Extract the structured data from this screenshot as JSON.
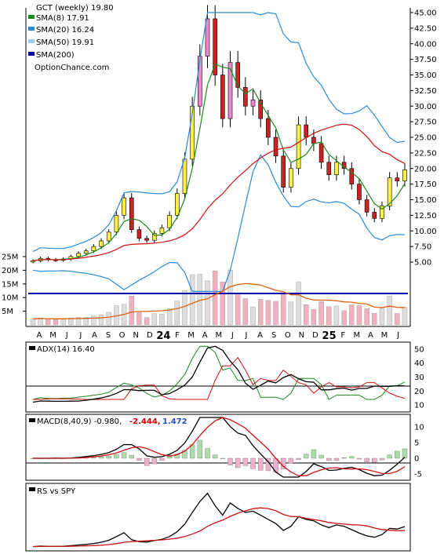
{
  "legend": {
    "title": "GCT (weekly) 19.80",
    "items": [
      {
        "label": "SMA(8) 17.91",
        "color": "#1a8a1a"
      },
      {
        "label": "SMA(20) 16.24",
        "color": "#2a8ad8"
      },
      {
        "label": "SMA(50) 19.91",
        "color": "#99ccee"
      },
      {
        "label": "SMA(200)",
        "color": "#0000aa"
      }
    ],
    "source": "OptionChance.com"
  },
  "chart_data": [
    {
      "type": "candlestick",
      "title": "GCT (weekly) 19.80",
      "ylim": [
        0,
        45
      ],
      "y_ticks": [
        "45.00",
        "42.50",
        "40.00",
        "37.50",
        "35.00",
        "32.50",
        "30.00",
        "27.50",
        "25.00",
        "22.50",
        "20.00",
        "17.50",
        "15.00",
        "12.50",
        "10.00",
        "7.50",
        "5.00"
      ],
      "volume_ticks": [
        "25M",
        "20M",
        "15M",
        "10M",
        "5M"
      ],
      "x_tick_labels": [
        "A",
        "M",
        "J",
        "J",
        "A",
        "S",
        "O",
        "N",
        "D",
        "24",
        "F",
        "M",
        "A",
        "M",
        "J",
        "J",
        "A",
        "S",
        "O",
        "N",
        "D",
        "25",
        "F",
        "M",
        "A",
        "M",
        "J"
      ],
      "close_approx": [
        5.2,
        5.6,
        5.4,
        5.3,
        5.5,
        5.9,
        6.4,
        6.8,
        7.5,
        8.4,
        9.8,
        12.5,
        15.3,
        10.2,
        8.8,
        8.5,
        9.6,
        10.5,
        12.5,
        16.0,
        21.5,
        30.0,
        38.0,
        44.0,
        35.0,
        28.0,
        37.0,
        33.0,
        30.0,
        31.0,
        28.0,
        25.0,
        22.0,
        17.0,
        20.0,
        27.0,
        25.0,
        24.0,
        21.0,
        19.0,
        21.0,
        20.0,
        17.5,
        15.0,
        13.0,
        12.0,
        14.0,
        18.5,
        18.0,
        19.8
      ],
      "series": [
        {
          "name": "SMA(8) 17.91",
          "color": "#1a8a1a"
        },
        {
          "name": "SMA(20) 16.24",
          "color": "#2a8ad8"
        },
        {
          "name": "SMA(50) 19.91",
          "color": "#99ccee"
        },
        {
          "name": "SMA(200)",
          "color": "#0000aa"
        }
      ]
    },
    {
      "type": "line",
      "title": "ADX(14) 16.40",
      "ylim": [
        5,
        55
      ],
      "y_ticks": [
        "50",
        "40",
        "30",
        "20",
        "10"
      ]
    },
    {
      "type": "bar",
      "title": "MACD(8,40,9) -0.980,",
      "values_labels": [
        "-2.444,",
        "1.472"
      ],
      "value_colors": [
        "#cc0000",
        "#2255cc"
      ],
      "ylim": [
        -7,
        14
      ],
      "y_ticks": [
        "10",
        "5",
        "0",
        "-5"
      ]
    },
    {
      "type": "line",
      "title": "RS vs SPY"
    }
  ]
}
